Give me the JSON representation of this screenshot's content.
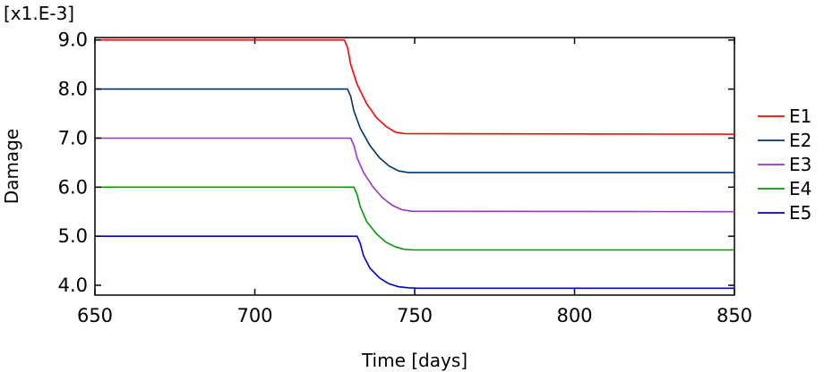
{
  "chart_data": {
    "type": "line",
    "title": "",
    "xlabel": "Time [days]",
    "ylabel": "Damage",
    "y_multiplier_label": "[x1.E-3]",
    "xlim": [
      650,
      850
    ],
    "ylim": [
      3.8,
      9.05
    ],
    "x_ticks": [
      650,
      700,
      750,
      800,
      850
    ],
    "x_tick_labels": [
      "650",
      "700",
      "750",
      "800",
      "850"
    ],
    "y_ticks": [
      4.0,
      5.0,
      6.0,
      7.0,
      8.0,
      9.0
    ],
    "y_tick_labels": [
      "4.0",
      "5.0",
      "6.0",
      "7.0",
      "8.0",
      "9.0"
    ],
    "grid": false,
    "legend_position": "right",
    "series": [
      {
        "name": "E1",
        "color": "#ff0000",
        "points": [
          [
            650,
            9.0
          ],
          [
            728,
            9.0
          ],
          [
            729,
            8.85
          ],
          [
            730,
            8.5
          ],
          [
            732,
            8.1
          ],
          [
            735,
            7.7
          ],
          [
            738,
            7.42
          ],
          [
            741,
            7.24
          ],
          [
            744,
            7.12
          ],
          [
            747,
            7.09
          ],
          [
            850,
            7.08
          ]
        ]
      },
      {
        "name": "E2",
        "color": "#003366",
        "points": [
          [
            650,
            8.0
          ],
          [
            729,
            8.0
          ],
          [
            730,
            7.85
          ],
          [
            731,
            7.55
          ],
          [
            733,
            7.2
          ],
          [
            736,
            6.85
          ],
          [
            739,
            6.6
          ],
          [
            742,
            6.43
          ],
          [
            745,
            6.33
          ],
          [
            748,
            6.3
          ],
          [
            850,
            6.3
          ]
        ]
      },
      {
        "name": "E3",
        "color": "#9933cc",
        "points": [
          [
            650,
            7.0
          ],
          [
            730,
            7.0
          ],
          [
            731,
            6.85
          ],
          [
            732,
            6.6
          ],
          [
            734,
            6.3
          ],
          [
            737,
            6.0
          ],
          [
            740,
            5.78
          ],
          [
            743,
            5.63
          ],
          [
            746,
            5.54
          ],
          [
            749,
            5.51
          ],
          [
            850,
            5.5
          ]
        ]
      },
      {
        "name": "E4",
        "color": "#009900",
        "points": [
          [
            650,
            6.0
          ],
          [
            731,
            6.0
          ],
          [
            732,
            5.85
          ],
          [
            733,
            5.6
          ],
          [
            735,
            5.3
          ],
          [
            738,
            5.05
          ],
          [
            741,
            4.88
          ],
          [
            744,
            4.78
          ],
          [
            747,
            4.73
          ],
          [
            750,
            4.72
          ],
          [
            850,
            4.72
          ]
        ]
      },
      {
        "name": "E5",
        "color": "#0000cc",
        "points": [
          [
            650,
            5.0
          ],
          [
            732,
            5.0
          ],
          [
            733,
            4.85
          ],
          [
            734,
            4.6
          ],
          [
            736,
            4.35
          ],
          [
            739,
            4.15
          ],
          [
            742,
            4.03
          ],
          [
            745,
            3.97
          ],
          [
            748,
            3.95
          ],
          [
            751,
            3.94
          ],
          [
            850,
            3.94
          ]
        ]
      }
    ]
  }
}
